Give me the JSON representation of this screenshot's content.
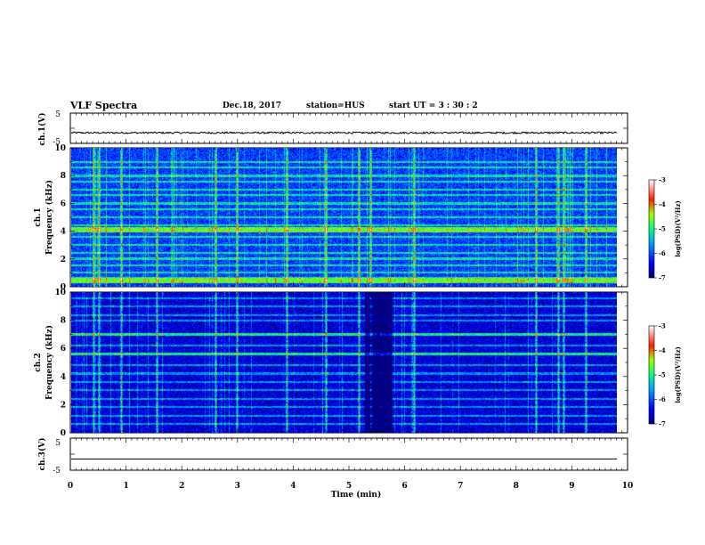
{
  "header": {
    "title": "VLF Spectra",
    "date": "Dec.18, 2017",
    "station": "station=HUS",
    "start": "start  UT  =   3 : 30 : 2"
  },
  "chart_data": [
    {
      "type": "line",
      "panel": "ch1-waveform",
      "ylabel": "ch.1(V)",
      "ylim": [
        -5,
        5
      ],
      "yticks": [
        "5",
        "-5"
      ],
      "xlim": [
        0,
        10
      ],
      "series_level": -1.5,
      "noise_amplitude": 0.3
    },
    {
      "type": "heatmap",
      "panel": "ch1-spectrogram",
      "ylabel": "ch.1\nFrequency (kHz)",
      "ylim": [
        0,
        10
      ],
      "yticks": [
        "0",
        "2",
        "4",
        "6",
        "8",
        "10"
      ],
      "xlim": [
        0,
        9.85
      ],
      "colorbar": {
        "label": "log(PSD)(V²/Hz)",
        "ticks": [
          "-3",
          "-4",
          "-5",
          "-6",
          "-7"
        ],
        "range": [
          -7,
          -3
        ]
      },
      "background_level": -6.1,
      "horizontal_lines_khz": [
        0.3,
        0.6,
        1.0,
        1.5,
        2.0,
        2.4,
        3.0,
        3.6,
        4.0,
        4.4,
        5.0,
        5.6,
        6.0,
        6.6,
        7.0,
        7.6,
        8.0,
        8.6,
        9.0
      ],
      "strong_lines_khz": [
        0.3,
        0.5,
        4.0,
        4.2
      ],
      "vertical_events_min": [
        0.4,
        0.5,
        0.9,
        1.55,
        2.6,
        3.0,
        3.9,
        4.6,
        5.2,
        5.4,
        6.2,
        8.4,
        8.8,
        8.9,
        9.3
      ]
    },
    {
      "type": "heatmap",
      "panel": "ch2-spectrogram",
      "ylabel": "ch.2\nFrequency (kHz)",
      "ylim": [
        0,
        10
      ],
      "yticks": [
        "0",
        "2",
        "4",
        "6",
        "8",
        "10"
      ],
      "xlim": [
        0,
        9.85
      ],
      "colorbar": {
        "label": "log(PSD)(V²/Hz)",
        "ticks": [
          "-3",
          "-4",
          "-5",
          "-6",
          "-7"
        ],
        "range": [
          -7,
          -3
        ]
      },
      "background_level": -6.6,
      "horizontal_lines_khz": [
        0.6,
        1.2,
        1.8,
        2.4,
        3.0,
        3.6,
        4.2,
        4.8,
        5.6,
        6.2,
        7.0,
        8.0,
        8.4,
        9.0,
        9.6
      ],
      "strong_lines_khz": [
        5.6,
        7.0
      ],
      "dark_region_min": [
        5.3,
        5.8
      ],
      "vertical_events_min": [
        0.4,
        0.5,
        0.9,
        1.55,
        2.6,
        3.0,
        3.9,
        4.6,
        5.2,
        5.4,
        6.2,
        8.4,
        8.8,
        8.9,
        9.3
      ]
    },
    {
      "type": "line",
      "panel": "ch3-waveform",
      "ylabel": "ch.3(V)",
      "ylim": [
        -5,
        5
      ],
      "yticks": [
        "5",
        "-5"
      ],
      "xlim": [
        0,
        10
      ],
      "series_level": -1.5,
      "noise_amplitude": 0
    }
  ],
  "xaxis": {
    "label": "Time  (min)",
    "ticks": [
      "0",
      "1",
      "2",
      "3",
      "4",
      "5",
      "6",
      "7",
      "8",
      "9",
      "10"
    ],
    "range": [
      0,
      10
    ]
  }
}
